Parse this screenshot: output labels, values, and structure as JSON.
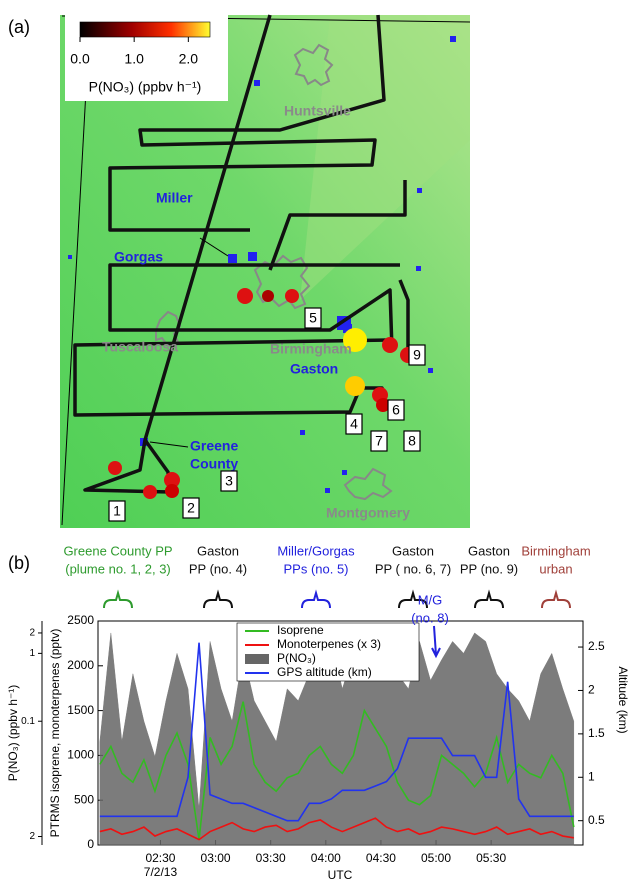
{
  "map": {
    "label": "(a)",
    "colorbar": {
      "title": "P(NO₃) (ppbv h⁻¹)",
      "lim": [
        0,
        2.4
      ],
      "ticks": [
        {
          "value": 0,
          "label": "0.0"
        },
        {
          "value": 1,
          "label": "1.0"
        },
        {
          "value": 2,
          "label": "2.0"
        }
      ]
    },
    "cities": [
      "Huntsville",
      "Tuscaloosa",
      "Birmingham",
      "Montgomery"
    ],
    "power_plants": [
      [
        "Miller"
      ],
      [
        "Gorgas"
      ],
      [
        "Gaston"
      ],
      [
        "Greene",
        "County"
      ]
    ],
    "plume_numbers": [
      1,
      2,
      3,
      4,
      5,
      6,
      7,
      8,
      9
    ]
  },
  "chart_data": {
    "type": "line",
    "label": "(b)",
    "x_label": "UTC",
    "x_date_label": "7/2/13",
    "y_label": "PTRMS isoprene, monoterpenes (pptv)",
    "y2_label": "Altitude (km)",
    "y3_label": "P(NO₃) (ppbv h⁻¹)",
    "xlim": [
      116,
      380
    ],
    "xticks": [
      {
        "value": 150,
        "label": "02:30"
      },
      {
        "value": 180,
        "label": "03:00"
      },
      {
        "value": 210,
        "label": "03:30"
      },
      {
        "value": 240,
        "label": "04:00"
      },
      {
        "value": 270,
        "label": "04:30"
      },
      {
        "value": 300,
        "label": "05:00"
      },
      {
        "value": 330,
        "label": "05:30"
      }
    ],
    "ylim": [
      0,
      2500
    ],
    "yticks": [
      0,
      500,
      1000,
      1500,
      2000,
      2500
    ],
    "y2lim": [
      0.22,
      2.8
    ],
    "y2ticks": [
      0.5,
      1.0,
      1.5,
      2.0,
      2.5
    ],
    "y3lim": [
      0.0015,
      3
    ],
    "y3scale": "log",
    "y3ticks": [
      {
        "value": 0.002,
        "label": "2"
      },
      0.1,
      1,
      {
        "value": 2,
        "label": "2"
      }
    ],
    "legend": "top-center",
    "x": [
      117,
      123,
      129,
      135,
      141,
      147,
      153,
      159,
      165,
      171,
      177,
      183,
      189,
      195,
      201,
      207,
      213,
      219,
      225,
      231,
      237,
      243,
      249,
      255,
      261,
      267,
      273,
      279,
      285,
      291,
      297,
      303,
      309,
      315,
      321,
      327,
      333,
      339,
      345,
      351,
      357,
      363,
      369,
      375
    ],
    "series": [
      {
        "name": "Isoprene",
        "color": "#33bb22",
        "axis": "y",
        "values": [
          900,
          1100,
          800,
          700,
          950,
          600,
          1000,
          1250,
          900,
          60,
          1200,
          900,
          1100,
          1600,
          900,
          700,
          600,
          750,
          800,
          1000,
          1100,
          900,
          800,
          1000,
          1500,
          1300,
          1100,
          700,
          500,
          450,
          550,
          1000,
          900,
          800,
          650,
          800,
          1200,
          700,
          900,
          800,
          750,
          1000,
          800,
          200
        ]
      },
      {
        "name": "Monoterpenes (x 3)",
        "color": "#ee1111",
        "axis": "y",
        "values": [
          150,
          180,
          120,
          150,
          200,
          100,
          150,
          180,
          120,
          60,
          150,
          200,
          250,
          180,
          150,
          200,
          220,
          150,
          180,
          250,
          280,
          200,
          150,
          200,
          250,
          300,
          200,
          150,
          180,
          120,
          150,
          200,
          180,
          150,
          120,
          150,
          200,
          120,
          150,
          180,
          120,
          150,
          100,
          80
        ]
      },
      {
        "name": "P(NO₃)",
        "color": "#666666",
        "axis": "y3",
        "kind": "area",
        "values": [
          0.05,
          2,
          0.05,
          0.5,
          0.1,
          0.03,
          0.2,
          1,
          0.3,
          0.005,
          1.5,
          0.3,
          0.1,
          1,
          0.2,
          0.1,
          0.05,
          0.3,
          0.2,
          0.5,
          1,
          1.5,
          0.3,
          1,
          0.8,
          0.5,
          1,
          0.5,
          0.3,
          1.5,
          0.4,
          0.8,
          1.5,
          1,
          2,
          1.5,
          0.5,
          0.3,
          0.2,
          0.1,
          0.5,
          1,
          0.3,
          0.1
        ]
      },
      {
        "name": "GPS altitude (km)",
        "color": "#2233ee",
        "axis": "y2",
        "values": [
          0.55,
          0.55,
          0.55,
          0.55,
          0.55,
          0.55,
          0.55,
          0.55,
          1.0,
          2.55,
          0.8,
          0.75,
          0.7,
          0.7,
          0.65,
          0.6,
          0.55,
          0.5,
          0.5,
          0.7,
          0.7,
          0.75,
          0.85,
          0.85,
          0.85,
          0.9,
          0.95,
          1.1,
          1.45,
          1.45,
          1.45,
          1.45,
          1.25,
          1.25,
          1.25,
          1.0,
          1.0,
          2.1,
          0.75,
          0.55,
          0.55,
          0.55,
          0.55,
          0.55
        ]
      }
    ],
    "annotations": [
      {
        "lines": [
          "Greene County PP",
          "(plume no. 1, 2, 3)"
        ],
        "color": "#2e9b2e"
      },
      {
        "lines": [
          "Gaston",
          "PP (no. 4)"
        ],
        "color": "#111111"
      },
      {
        "lines": [
          "Miller/Gorgas",
          "PPs   (no. 5)"
        ],
        "color": "#2222dd"
      },
      {
        "lines": [
          "Gaston",
          "PP ( no. 6, 7)"
        ],
        "color": "#111111"
      },
      {
        "lines": [
          "Gaston",
          "PP (no. 9)"
        ],
        "color": "#111111"
      },
      {
        "lines": [
          "Birmingham",
          "urban"
        ],
        "color": "#a0403a"
      },
      {
        "lines": [
          "M/G",
          "(no. 8)"
        ],
        "color": "#2222dd"
      }
    ]
  }
}
